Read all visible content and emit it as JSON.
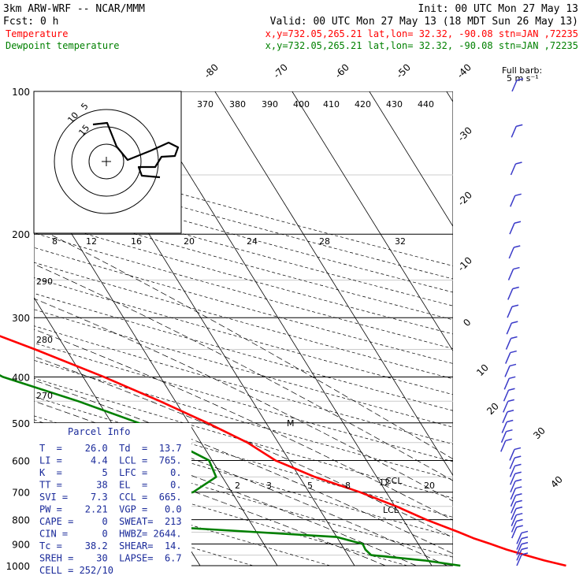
{
  "header": {
    "model": "3km ARW-WRF -- NCAR/MMM",
    "init": "Init: 00 UTC Mon 27 May 13",
    "fcst": "Fcst:     0 h",
    "valid": "Valid: 00 UTC Mon 27 May 13 (18 MDT Sun 26 May 13)",
    "temp_label": "Temperature",
    "temp_info": "x,y=732.05,265.21   lat,lon= 32.32, -90.08   stn=JAN ,72235",
    "dew_label": "Dewpoint temperature",
    "dew_info": "x,y=732.05,265.21   lat,lon= 32.32, -90.08   stn=JAN ,72235",
    "full_barb_1": "Full barb:",
    "full_barb_2": "5 m s⁻¹"
  },
  "colors": {
    "temperature": "#ff0000",
    "dewpoint": "#008000",
    "parcel_text": "#1a2a9a",
    "wind_barbs": "#3a3ac8"
  },
  "chart_data": {
    "type": "line",
    "subtype": "skew-T log-p",
    "y_axis": "pressure (hPa), log scale",
    "ylim": [
      1000,
      100
    ],
    "pressure_ticks": [
      "100",
      "200",
      "300",
      "400",
      "500",
      "600",
      "700",
      "800",
      "900",
      "1000"
    ],
    "isotherm_labels": [
      "-80",
      "-70",
      "-60",
      "-50",
      "-40",
      "-30",
      "-20",
      "-10",
      "0",
      "10",
      "20",
      "30",
      "40"
    ],
    "theta_labels": [
      "370",
      "380",
      "390",
      "400",
      "410",
      "420",
      "430",
      "440",
      "290",
      "280",
      "270"
    ],
    "hodo_speed_labels": [
      "kts",
      "8",
      "12",
      "16",
      "20",
      "24",
      "28",
      "32"
    ],
    "hodo_ring_labels": [
      "15",
      "10",
      "5"
    ],
    "mixing_ratio_labels": [
      "2",
      "3",
      "5",
      "8",
      "12",
      "20"
    ],
    "level_labels": [
      "CCL",
      "LCL",
      "M"
    ],
    "series": [
      {
        "name": "Temperature",
        "points": [
          {
            "p": 1000,
            "t": 27.4
          },
          {
            "p": 975,
            "t": 25.0
          },
          {
            "p": 950,
            "t": 23.0
          },
          {
            "p": 925,
            "t": 21.0
          },
          {
            "p": 900,
            "t": 19.4
          },
          {
            "p": 875,
            "t": 17.6
          },
          {
            "p": 850,
            "t": 16.2
          },
          {
            "p": 800,
            "t": 13.0
          },
          {
            "p": 750,
            "t": 10.2
          },
          {
            "p": 700,
            "t": 6.6
          },
          {
            "p": 650,
            "t": 2.0
          },
          {
            "p": 600,
            "t": -1.8
          },
          {
            "p": 550,
            "t": -4.0
          },
          {
            "p": 500,
            "t": -7.6
          },
          {
            "p": 450,
            "t": -12.0
          },
          {
            "p": 400,
            "t": -17.3
          },
          {
            "p": 350,
            "t": -24.0
          },
          {
            "p": 300,
            "t": -32.3
          },
          {
            "p": 250,
            "t": -42.3
          },
          {
            "p": 200,
            "t": -54.2
          },
          {
            "p": 175,
            "t": -59.5
          },
          {
            "p": 150,
            "t": -61.0
          },
          {
            "p": 125,
            "t": -60.5
          },
          {
            "p": 100,
            "t": -61.0
          }
        ]
      },
      {
        "name": "Dewpoint temperature",
        "points": [
          {
            "p": 1000,
            "t": 13.7
          },
          {
            "p": 975,
            "t": 9.5
          },
          {
            "p": 950,
            "t": 3.0
          },
          {
            "p": 925,
            "t": 2.7
          },
          {
            "p": 900,
            "t": 2.8
          },
          {
            "p": 870,
            "t": 0.0
          },
          {
            "p": 830,
            "t": -20.0
          },
          {
            "p": 800,
            "t": -30.0
          },
          {
            "p": 775,
            "t": -33.5
          },
          {
            "p": 750,
            "t": -27.0
          },
          {
            "p": 700,
            "t": -15.0
          },
          {
            "p": 650,
            "t": -10.8
          },
          {
            "p": 600,
            "t": -10.4
          },
          {
            "p": 550,
            "t": -13.5
          },
          {
            "p": 500,
            "t": -16.5
          },
          {
            "p": 450,
            "t": -22.6
          },
          {
            "p": 400,
            "t": -30.4
          },
          {
            "p": 350,
            "t": -35.0
          },
          {
            "p": 300,
            "t": -41.3
          },
          {
            "p": 250,
            "t": -53.3
          },
          {
            "p": 200,
            "t": -63.3
          },
          {
            "p": 175,
            "t": -69.0
          },
          {
            "p": 150,
            "t": -73.0
          },
          {
            "p": 125,
            "t": -77.7
          },
          {
            "p": 100,
            "t": -80.3
          }
        ]
      }
    ],
    "wind_barb_levels": [
      1000,
      975,
      950,
      925,
      900,
      875,
      850,
      825,
      800,
      775,
      750,
      725,
      700,
      675,
      650,
      625,
      600,
      575,
      550,
      525,
      500,
      475,
      450,
      425,
      400,
      375,
      350,
      325,
      300,
      275,
      250,
      225,
      200,
      175,
      150,
      125,
      100
    ],
    "hodograph": [
      {
        "u": -1,
        "v": 8
      },
      {
        "u": 2,
        "v": 7
      },
      {
        "u": 3,
        "v": 3
      },
      {
        "u": 12,
        "v": 3
      },
      {
        "u": 18,
        "v": 6
      },
      {
        "u": 16,
        "v": 0
      },
      {
        "u": 10,
        "v": -2
      },
      {
        "u": 8,
        "v": -4
      },
      {
        "u": 14,
        "v": -4
      }
    ]
  },
  "parcel_info": {
    "title": "Parcel Info",
    "rows": [
      "T  =    26.0  Td  =  13.7",
      "LI =     4.4  LCL =  765.",
      "K  =       5  LFC =    0.",
      "TT =      38  EL  =    0.",
      "SVI =    7.3  CCL =  665.",
      "PW =    2.21  VGP =   0.0",
      "CAPE =     0  SWEAT=  213",
      "CIN =      0  HWBZ= 2644.",
      "Tc =    38.2  SHEAR=  14.",
      "SREH =    30  LAPSE=  6.7",
      "CELL = 252/10"
    ]
  }
}
